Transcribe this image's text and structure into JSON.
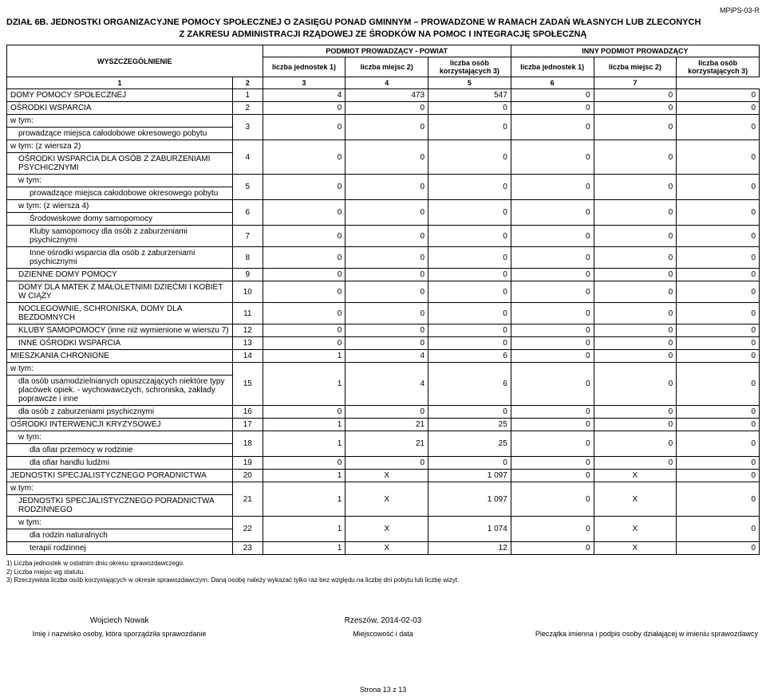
{
  "docCode": "MPiPS-03-R",
  "dzial": "DZIAŁ 6B.",
  "title_line1": "JEDNOSTKI ORGANIZACYJNE POMOCY SPOŁECZNEJ O ZASIĘGU PONAD GMINNYM – PROWADZONE W RAMACH ZADAŃ WŁASNYCH LUB ZLECONYCH",
  "title_line2": "Z ZAKRESU ADMINISTRACJI RZĄDOWEJ ZE ŚRODKÓW NA POMOC I INTEGRACJĘ SPOŁECZNĄ",
  "headers": {
    "wyszczegolnienie": "WYSZCZEGÓLNIENIE",
    "podmiot_powiat": "PODMIOT PROWADZĄCY - POWIAT",
    "inny_podmiot": "INNY PODMIOT PROWADZĄCY",
    "liczba_jednostek": "liczba jednostek 1)",
    "liczba_miejsc": "liczba miejsc 2)",
    "liczba_osob": "liczba osób korzystających 3)"
  },
  "colnums": [
    "1",
    "2",
    "3",
    "4",
    "5",
    "6",
    "7"
  ],
  "rows": [
    {
      "label": "DOMY POMOCY SPOŁECZNEJ",
      "n": "1",
      "c": [
        "4",
        "473",
        "547",
        "0",
        "0",
        "0"
      ],
      "ind": 0
    },
    {
      "label": "OŚRODKI WSPARCIA",
      "n": "2",
      "c": [
        "0",
        "0",
        "0",
        "0",
        "0",
        "0"
      ],
      "ind": 0
    },
    {
      "label": "w tym:",
      "n": "",
      "c": [
        "",
        "",
        "",
        "",
        "",
        ""
      ],
      "ind": 0,
      "noborder": true
    },
    {
      "label": "prowadzące miejsca całodobowe okresowego pobytu",
      "n": "3",
      "c": [
        "0",
        "0",
        "0",
        "0",
        "0",
        "0"
      ],
      "ind": 1,
      "merge_up": true
    },
    {
      "label": "w tym: (z wiersza 2)",
      "n": "",
      "c": [
        "",
        "",
        "",
        "",
        "",
        ""
      ],
      "ind": 0,
      "noborder": true
    },
    {
      "label": "OŚRODKI WSPARCIA DLA OSÓB Z ZABURZENIAMI PSYCHICZNYMI",
      "n": "4",
      "c": [
        "0",
        "0",
        "0",
        "0",
        "0",
        "0"
      ],
      "ind": 1,
      "merge_up": true
    },
    {
      "label": "w tym:",
      "n": "",
      "c": [
        "",
        "",
        "",
        "",
        "",
        ""
      ],
      "ind": 1,
      "noborder": true
    },
    {
      "label": "prowadzące miejsca całodobowe okresowego pobytu",
      "n": "5",
      "c": [
        "0",
        "0",
        "0",
        "0",
        "0",
        "0"
      ],
      "ind": 2,
      "merge_up": true
    },
    {
      "label": "w tym: (z wiersza 4)",
      "n": "",
      "c": [
        "",
        "",
        "",
        "",
        "",
        ""
      ],
      "ind": 1,
      "noborder": true
    },
    {
      "label": "Środowiskowe domy samopomocy",
      "n": "6",
      "c": [
        "0",
        "0",
        "0",
        "0",
        "0",
        "0"
      ],
      "ind": 2,
      "merge_up": true
    },
    {
      "label": "Kluby samopomocy dla osób z zaburzeniami psychicznymi",
      "n": "7",
      "c": [
        "0",
        "0",
        "0",
        "0",
        "0",
        "0"
      ],
      "ind": 2
    },
    {
      "label": "Inne ośrodki wsparcia dla osób z zaburzeniami psychicznymi",
      "n": "8",
      "c": [
        "0",
        "0",
        "0",
        "0",
        "0",
        "0"
      ],
      "ind": 2
    },
    {
      "label": "DZIENNE DOMY POMOCY",
      "n": "9",
      "c": [
        "0",
        "0",
        "0",
        "0",
        "0",
        "0"
      ],
      "ind": 1
    },
    {
      "label": "DOMY DLA MATEK Z MAŁOLETNIMI DZIEĆMI I KOBIET W CIĄŻY",
      "n": "10",
      "c": [
        "0",
        "0",
        "0",
        "0",
        "0",
        "0"
      ],
      "ind": 1
    },
    {
      "label": "NOCLEGOWNIE, SCHRONISKA, DOMY DLA BEZDOMNYCH",
      "n": "11",
      "c": [
        "0",
        "0",
        "0",
        "0",
        "0",
        "0"
      ],
      "ind": 1
    },
    {
      "label": "KLUBY SAMOPOMOCY (inne niż wymienione w wierszu 7)",
      "n": "12",
      "c": [
        "0",
        "0",
        "0",
        "0",
        "0",
        "0"
      ],
      "ind": 1
    },
    {
      "label": "INNE OŚRODKI WSPARCIA",
      "n": "13",
      "c": [
        "0",
        "0",
        "0",
        "0",
        "0",
        "0"
      ],
      "ind": 1
    },
    {
      "label": "MIESZKANIA CHRONIONE",
      "n": "14",
      "c": [
        "1",
        "4",
        "6",
        "0",
        "0",
        "0"
      ],
      "ind": 0
    },
    {
      "label": "w tym:",
      "n": "",
      "c": [
        "",
        "",
        "",
        "",
        "",
        ""
      ],
      "ind": 0,
      "noborder": true
    },
    {
      "label": "dla osób usamodzielnianych opuszczających niektóre typy placówek opiek. - wychowawczych, schroniska, zakłady poprawcze i inne",
      "n": "15",
      "c": [
        "1",
        "4",
        "6",
        "0",
        "0",
        "0"
      ],
      "ind": 1,
      "merge_up": true
    },
    {
      "label": "dla osób z zaburzeniami psychicznymi",
      "n": "16",
      "c": [
        "0",
        "0",
        "0",
        "0",
        "0",
        "0"
      ],
      "ind": 1
    },
    {
      "label": "OŚRODKI INTERWENCJI KRYZYSOWEJ",
      "n": "17",
      "c": [
        "1",
        "21",
        "25",
        "0",
        "0",
        "0"
      ],
      "ind": 0
    },
    {
      "label": "w tym:",
      "n": "",
      "c": [
        "",
        "",
        "",
        "",
        "",
        ""
      ],
      "ind": 1,
      "noborder": true
    },
    {
      "label": "dla ofiar przemocy w rodzinie",
      "n": "18",
      "c": [
        "1",
        "21",
        "25",
        "0",
        "0",
        "0"
      ],
      "ind": 2,
      "merge_up": true
    },
    {
      "label": "dla ofiar handlu ludźmi",
      "n": "19",
      "c": [
        "0",
        "0",
        "0",
        "0",
        "0",
        "0"
      ],
      "ind": 2
    },
    {
      "label": "JEDNOSTKI SPECJALISTYCZNEGO PORADNICTWA",
      "n": "20",
      "c": [
        "1",
        "X",
        "1 097",
        "0",
        "X",
        "0"
      ],
      "ind": 0
    },
    {
      "label": "w tym:",
      "n": "",
      "c": [
        "",
        "",
        "",
        "",
        "",
        ""
      ],
      "ind": 0,
      "noborder": true
    },
    {
      "label": "JEDNOSTKI SPECJALISTYCZNEGO PORADNICTWA RODZINNEGO",
      "n": "21",
      "c": [
        "1",
        "X",
        "1 097",
        "0",
        "X",
        "0"
      ],
      "ind": 1,
      "merge_up": true
    },
    {
      "label": "w tym:",
      "n": "",
      "c": [
        "",
        "",
        "",
        "",
        "",
        ""
      ],
      "ind": 1,
      "noborder": true
    },
    {
      "label": "dla rodzin naturalnych",
      "n": "22",
      "c": [
        "1",
        "X",
        "1 074",
        "0",
        "X",
        "0"
      ],
      "ind": 2,
      "merge_up": true
    },
    {
      "label": "terapii rodzinnej",
      "n": "23",
      "c": [
        "1",
        "X",
        "12",
        "0",
        "X",
        "0"
      ],
      "ind": 2
    }
  ],
  "footnotes": [
    "1) Liczba jednostek w ostatnim dniu okresu sprawozdawczego.",
    "2) Liczba miejsc wg statutu.",
    "3) Rzeczywista liczba osób korzystających w okresie sprawozdawczym. Daną osobę należy wykazać tylko raz bez względu na liczbę dni pobytu lub liczbę wizyt."
  ],
  "signatures": {
    "name": "Wojciech Nowak",
    "name_desc": "Imię i nazwisko osoby, która sporządziła sprawozdanie",
    "place_date": "Rzeszów, 2014-02-03",
    "place_desc": "Miejscowość i data",
    "stamp_desc": "Pieczątka imienna i podpis osoby działającej w imieniu sprawozdawcy"
  },
  "page_footer": "Strona 13 z 13",
  "col_widths": {
    "label": "30%",
    "rownum": "4%",
    "data": "11%"
  }
}
